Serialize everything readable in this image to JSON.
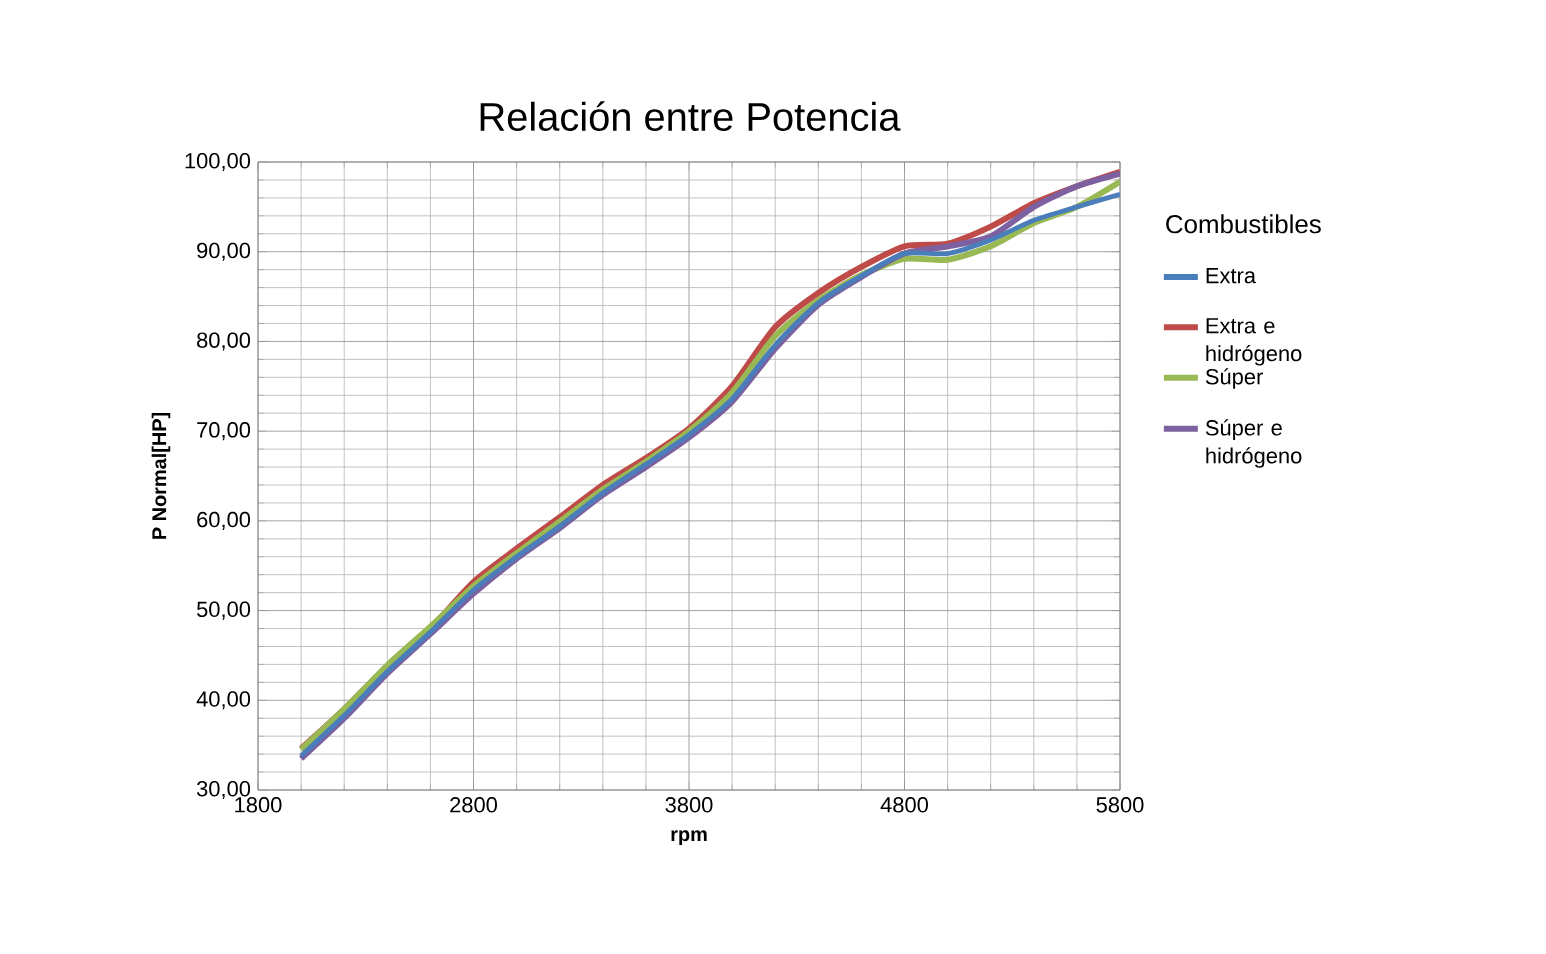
{
  "chart_data": {
    "type": "line",
    "title": "Relación entre Potencia",
    "xlabel": "rpm",
    "ylabel": "P Normal[HP]",
    "legend_title": "Combustibles",
    "x": [
      2000,
      2200,
      2400,
      2600,
      2800,
      3000,
      3200,
      3400,
      3600,
      3800,
      4000,
      4200,
      4400,
      4600,
      4800,
      5000,
      5200,
      5400,
      5600,
      5800
    ],
    "series": [
      {
        "name": "Extra",
        "color": "#4a7ebb",
        "values": [
          33.8,
          38.3,
          43.2,
          47.6,
          52.3,
          56.0,
          59.4,
          63.1,
          66.3,
          69.6,
          73.6,
          79.6,
          84.3,
          87.3,
          89.8,
          89.8,
          91.3,
          93.5,
          95.0,
          96.4
        ]
      },
      {
        "name": "Extra e hidrógeno",
        "color": "#be4b48",
        "values": [
          34.6,
          39.0,
          43.8,
          48.0,
          53.2,
          56.9,
          60.4,
          64.0,
          67.0,
          70.3,
          75.0,
          81.6,
          85.4,
          88.3,
          90.6,
          90.9,
          92.8,
          95.4,
          97.3,
          98.9
        ]
      },
      {
        "name": "Súper",
        "color": "#98b954",
        "values": [
          34.5,
          39.0,
          43.9,
          48.2,
          52.7,
          56.4,
          59.9,
          63.5,
          66.6,
          70.0,
          74.3,
          80.6,
          84.6,
          87.4,
          89.2,
          89.1,
          90.6,
          93.2,
          95.0,
          97.8
        ]
      },
      {
        "name": "Súper e hidrógeno",
        "color": "#7d60a0",
        "values": [
          33.5,
          38.0,
          43.0,
          47.4,
          51.9,
          55.8,
          59.2,
          62.9,
          66.0,
          69.3,
          73.3,
          79.2,
          84.1,
          87.2,
          89.8,
          90.6,
          91.7,
          95.0,
          97.3,
          98.7
        ]
      }
    ],
    "xlim": [
      1800,
      5800
    ],
    "xticks": [
      1800,
      2800,
      3800,
      4800,
      5800
    ],
    "ylim": [
      30,
      100
    ],
    "yticks": [
      {
        "value": 30,
        "label": "30,00"
      },
      {
        "value": 40,
        "label": "40,00"
      },
      {
        "value": 50,
        "label": "50,00"
      },
      {
        "value": 60,
        "label": "60,00"
      },
      {
        "value": 70,
        "label": "70,00"
      },
      {
        "value": 80,
        "label": "80,00"
      },
      {
        "value": 90,
        "label": "90,00"
      },
      {
        "value": 100,
        "label": "100,00"
      }
    ],
    "grid": true,
    "legend": "right",
    "marker": "none",
    "line_style": "solid"
  }
}
